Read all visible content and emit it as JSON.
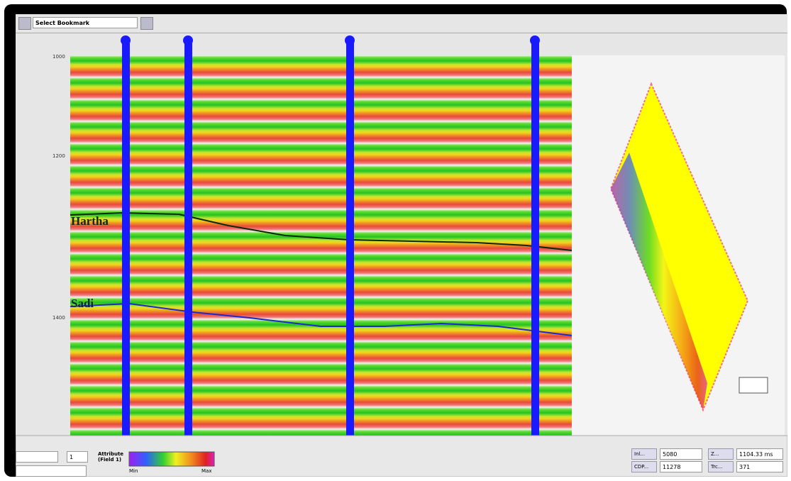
{
  "toolbar": {
    "bookmark_select": "Select Bookmark"
  },
  "time_axis": [
    "1000",
    "1200",
    "1400"
  ],
  "horizons": [
    "Hartha",
    "Sadi"
  ],
  "colorbar": {
    "title": "Attribute (Field 1)",
    "min_label": "Min",
    "max_label": "Max"
  },
  "left_field": "1",
  "status": [
    {
      "label": "Inl...",
      "value": "5080"
    },
    {
      "label": "Z...",
      "value": "1104.33 ms"
    },
    {
      "label": "CDP...",
      "value": "11278"
    },
    {
      "label": "Trc...",
      "value": "371"
    }
  ]
}
